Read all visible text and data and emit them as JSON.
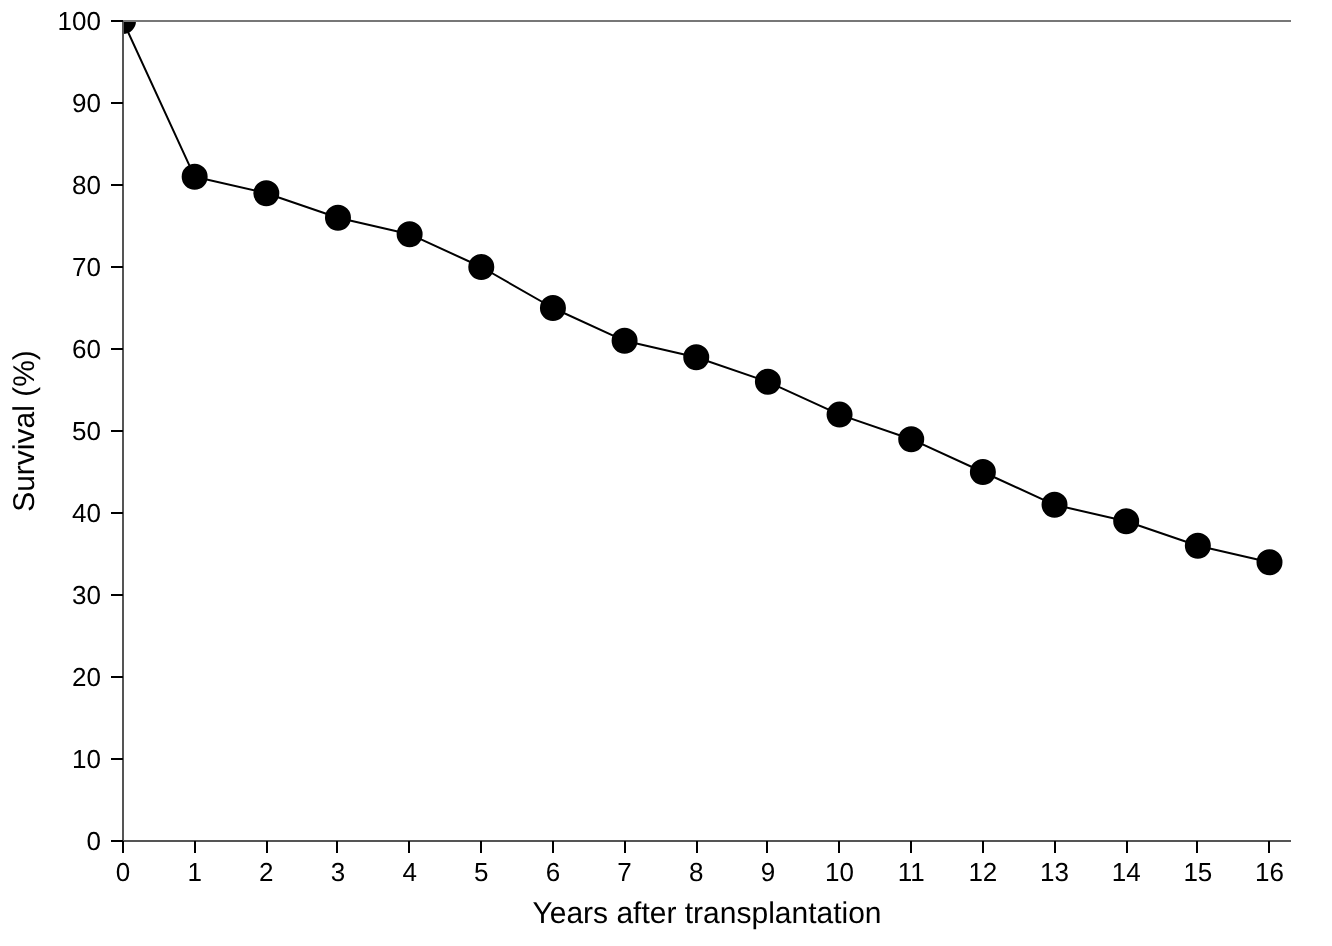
{
  "chart_data": {
    "type": "line",
    "xlabel": "Years after transplantation",
    "ylabel": "Survival (%)",
    "x": [
      0,
      1,
      2,
      3,
      4,
      5,
      6,
      7,
      8,
      9,
      10,
      11,
      12,
      13,
      14,
      15,
      16
    ],
    "series": [
      {
        "color": "#000000",
        "values": [
          100,
          81,
          79,
          76,
          74,
          70,
          65,
          61,
          59,
          56,
          52,
          49,
          45,
          41,
          39,
          36,
          34
        ]
      }
    ],
    "xlim": [
      0,
      16.3
    ],
    "ylim": [
      0,
      100
    ],
    "xticks": [
      0,
      1,
      2,
      3,
      4,
      5,
      6,
      7,
      8,
      9,
      10,
      11,
      12,
      13,
      14,
      15,
      16
    ],
    "yticks": [
      0,
      10,
      20,
      30,
      40,
      50,
      60,
      70,
      80,
      90,
      100
    ],
    "grid": false,
    "marker": "circle",
    "line_style": "solid"
  }
}
